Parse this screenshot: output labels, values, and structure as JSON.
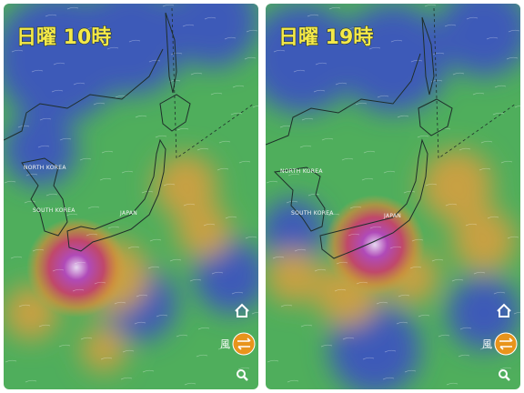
{
  "panels": [
    {
      "title": "日曜 10時",
      "labels": [
        "NORTH KOREA",
        "SOUTH KOREA",
        "JAPAN"
      ],
      "wind_label": "風"
    },
    {
      "title": "日曜 19時",
      "labels": [
        "NORTH KOREA",
        "SOUTH KOREA",
        "JAPAN"
      ],
      "wind_label": "風"
    }
  ]
}
